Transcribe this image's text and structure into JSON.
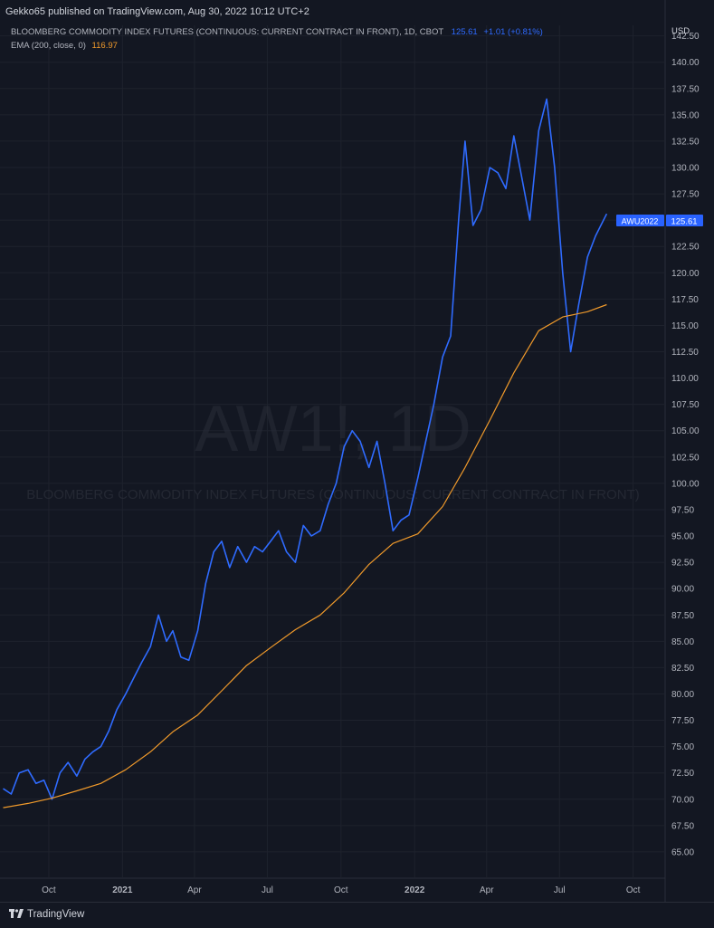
{
  "header": {
    "published": "Gekko65 published on TradingView.com, Aug 30, 2022 10:12 UTC+2"
  },
  "legend": {
    "symbol_desc": "BLOOMBERG COMMODITY INDEX FUTURES (CONTINUOUS: CURRENT CONTRACT IN FRONT), 1D, CBOT",
    "last": "125.61",
    "change": "+1.01 (+0.81%)",
    "ema_label": "EMA (200, close, 0)",
    "ema_value": "116.97"
  },
  "axis": {
    "currency": "USD"
  },
  "watermark": {
    "symbol": "AW1!, 1D",
    "description": "BLOOMBERG COMMODITY INDEX FUTURES (CONTINUOUS: CURRENT CONTRACT IN FRONT)"
  },
  "price_tag": {
    "contract": "AWU2022",
    "price": "125.61"
  },
  "footer": {
    "brand": "TradingView"
  },
  "colors": {
    "background": "#131722",
    "price_line": "#2f6bff",
    "ema_line": "#f09a2b",
    "grid": "#1e222d"
  },
  "chart_data": {
    "type": "line",
    "title": "BLOOMBERG COMMODITY INDEX FUTURES (CONTINUOUS: CURRENT CONTRACT IN FRONT), 1D, CBOT",
    "xlabel": "",
    "ylabel": "USD",
    "ylim": [
      62.5,
      143.5
    ],
    "grid": true,
    "legend_position": "top-left",
    "y_ticks": [
      "65.00",
      "67.50",
      "70.00",
      "72.50",
      "75.00",
      "77.50",
      "80.00",
      "82.50",
      "85.00",
      "87.50",
      "90.00",
      "92.50",
      "95.00",
      "97.50",
      "100.00",
      "102.50",
      "105.00",
      "107.50",
      "110.00",
      "112.50",
      "115.00",
      "117.50",
      "120.00",
      "122.50",
      "125.00",
      "127.50",
      "130.00",
      "132.50",
      "135.00",
      "137.50",
      "140.00",
      "142.50"
    ],
    "x_ticks": [
      "Oct",
      "2021",
      "Apr",
      "Jul",
      "Oct",
      "2022",
      "Apr",
      "Jul",
      "Oct"
    ],
    "x_tick_dates": [
      "2020-10-01",
      "2021-01-01",
      "2021-04-01",
      "2021-07-01",
      "2021-10-01",
      "2022-01-01",
      "2022-04-01",
      "2022-07-01",
      "2022-10-01"
    ],
    "series": [
      {
        "name": "AW1!",
        "x": [
          "2020-08-05",
          "2020-08-15",
          "2020-08-25",
          "2020-09-05",
          "2020-09-15",
          "2020-09-25",
          "2020-10-05",
          "2020-10-15",
          "2020-10-25",
          "2020-11-05",
          "2020-11-15",
          "2020-11-25",
          "2020-12-05",
          "2020-12-15",
          "2020-12-25",
          "2021-01-05",
          "2021-01-15",
          "2021-01-25",
          "2021-02-05",
          "2021-02-15",
          "2021-02-25",
          "2021-03-05",
          "2021-03-15",
          "2021-03-25",
          "2021-04-05",
          "2021-04-15",
          "2021-04-25",
          "2021-05-05",
          "2021-05-15",
          "2021-05-25",
          "2021-06-05",
          "2021-06-15",
          "2021-06-25",
          "2021-07-05",
          "2021-07-15",
          "2021-07-25",
          "2021-08-05",
          "2021-08-15",
          "2021-08-25",
          "2021-09-05",
          "2021-09-15",
          "2021-09-25",
          "2021-10-05",
          "2021-10-15",
          "2021-10-25",
          "2021-11-05",
          "2021-11-15",
          "2021-11-25",
          "2021-12-05",
          "2021-12-15",
          "2021-12-25",
          "2022-01-05",
          "2022-01-15",
          "2022-01-25",
          "2022-02-05",
          "2022-02-15",
          "2022-02-25",
          "2022-03-05",
          "2022-03-15",
          "2022-03-25",
          "2022-04-05",
          "2022-04-15",
          "2022-04-25",
          "2022-05-05",
          "2022-05-15",
          "2022-05-25",
          "2022-06-05",
          "2022-06-15",
          "2022-06-25",
          "2022-07-05",
          "2022-07-15",
          "2022-07-25",
          "2022-08-05",
          "2022-08-15",
          "2022-08-29"
        ],
        "values": [
          71.0,
          70.5,
          72.5,
          72.8,
          71.5,
          71.8,
          70.0,
          72.5,
          73.5,
          72.2,
          73.8,
          74.5,
          75.0,
          76.5,
          78.5,
          80.0,
          81.5,
          83.0,
          84.5,
          87.5,
          85.0,
          86.0,
          83.5,
          83.2,
          86.0,
          90.5,
          93.5,
          94.5,
          92.0,
          94.0,
          92.5,
          94.0,
          93.5,
          94.5,
          95.5,
          93.5,
          92.5,
          96.0,
          95.0,
          95.5,
          98.0,
          100.0,
          103.5,
          105.0,
          104.0,
          101.5,
          104.0,
          100.0,
          95.5,
          96.5,
          97.0,
          100.5,
          104.0,
          107.5,
          112.0,
          114.0,
          125.0,
          132.5,
          124.5,
          126.0,
          130.0,
          129.5,
          128.0,
          133.0,
          129.0,
          125.0,
          133.5,
          136.5,
          130.0,
          120.0,
          112.5,
          117.0,
          121.5,
          123.5,
          125.6
        ]
      },
      {
        "name": "EMA (200, close, 0)",
        "x": [
          "2020-08-05",
          "2020-09-05",
          "2020-10-05",
          "2020-11-05",
          "2020-12-05",
          "2021-01-05",
          "2021-02-05",
          "2021-03-05",
          "2021-04-05",
          "2021-05-05",
          "2021-06-05",
          "2021-07-05",
          "2021-08-05",
          "2021-09-05",
          "2021-10-05",
          "2021-11-05",
          "2021-12-05",
          "2022-01-05",
          "2022-02-05",
          "2022-03-05",
          "2022-04-05",
          "2022-05-05",
          "2022-06-05",
          "2022-07-05",
          "2022-08-05",
          "2022-08-29"
        ],
        "values": [
          69.2,
          69.6,
          70.1,
          70.8,
          71.5,
          72.8,
          74.5,
          76.4,
          78.0,
          80.3,
          82.7,
          84.4,
          86.1,
          87.5,
          89.6,
          92.3,
          94.3,
          95.2,
          97.8,
          101.5,
          106.0,
          110.5,
          114.5,
          115.8,
          116.3,
          116.97
        ]
      }
    ]
  }
}
